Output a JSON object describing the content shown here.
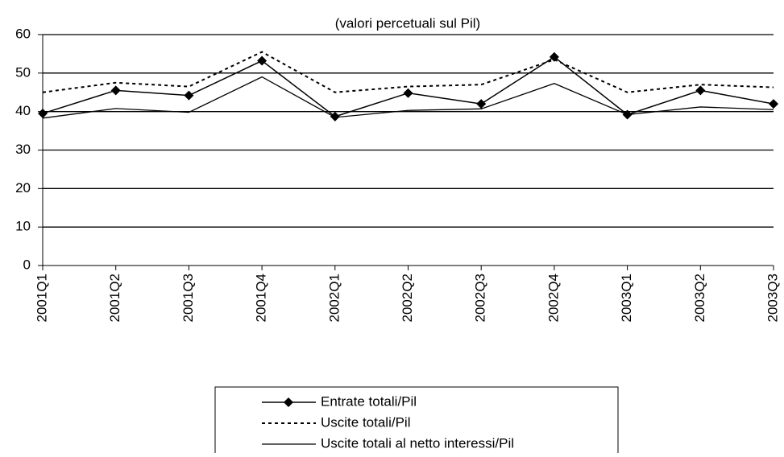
{
  "chart_data": {
    "type": "line",
    "subtitle": "(valori percetuali sul Pil)",
    "categories": [
      "2001Q1",
      "2001Q2",
      "2001Q3",
      "2001Q4",
      "2002Q1",
      "2002Q2",
      "2002Q3",
      "2002Q4",
      "2003Q1",
      "2003Q2",
      "2003Q3"
    ],
    "series": [
      {
        "name": "Entrate totali/Pil",
        "color": "#000000",
        "values": [
          39.5,
          45.5,
          44.2,
          53.2,
          38.7,
          44.8,
          42.0,
          54.2,
          39.2,
          45.5,
          42.0
        ]
      },
      {
        "name": "Uscite totali/Pil",
        "color": "#000000",
        "values": [
          45.0,
          47.5,
          46.5,
          55.5,
          45.0,
          46.5,
          47.0,
          53.5,
          45.0,
          47.0,
          46.3
        ]
      },
      {
        "name": "Uscite totali al netto interessi/Pil",
        "color": "#000000",
        "values": [
          38.3,
          40.8,
          39.8,
          49.0,
          38.5,
          40.3,
          40.7,
          47.3,
          39.2,
          41.2,
          40.5
        ]
      }
    ],
    "ylim": [
      0,
      60
    ],
    "yticks": [
      0,
      10,
      20,
      30,
      40,
      50,
      60
    ],
    "grid": true
  }
}
